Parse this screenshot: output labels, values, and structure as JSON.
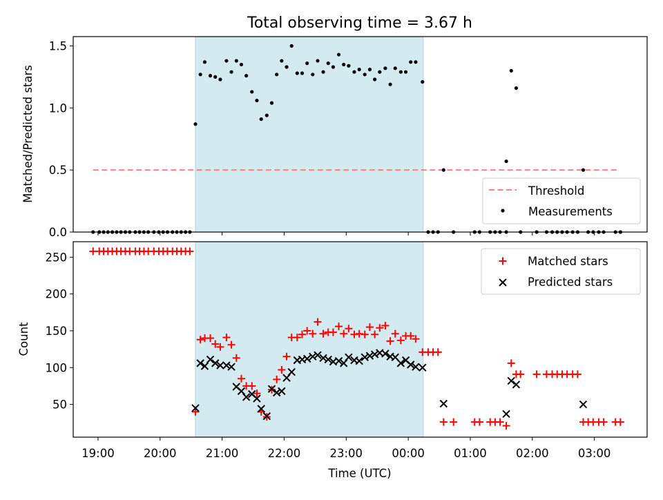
{
  "chart_data": [
    {
      "type": "scatter",
      "title": "Total observing time = 3.67 h",
      "xlabel": "",
      "ylabel": "Matched/Predicted stars",
      "xlim": [
        18.6,
        27.85
      ],
      "ylim": [
        0,
        1.575
      ],
      "yticks": [
        0.0,
        0.5,
        1.0,
        1.5
      ],
      "ytick_labels": [
        "0.0",
        "0.5",
        "1.0",
        "1.5"
      ],
      "shaded_interval": [
        20.57,
        24.24
      ],
      "threshold": {
        "value": 0.5,
        "x_range": [
          18.92,
          27.4
        ]
      },
      "legend_position": "lower right",
      "legend": [
        "Threshold",
        "Measurements"
      ],
      "colors": {
        "threshold": "#ff8080",
        "measurements": "#000000",
        "shade": "#d4eaf1"
      },
      "series": [
        {
          "name": "Measurements",
          "points": [
            [
              18.92,
              0.0
            ],
            [
              19.02,
              0.0
            ],
            [
              19.09,
              0.0
            ],
            [
              19.16,
              0.0
            ],
            [
              19.23,
              0.0
            ],
            [
              19.3,
              0.0
            ],
            [
              19.37,
              0.0
            ],
            [
              19.44,
              0.0
            ],
            [
              19.51,
              0.0
            ],
            [
              19.6,
              0.0
            ],
            [
              19.67,
              0.0
            ],
            [
              19.74,
              0.0
            ],
            [
              19.81,
              0.0
            ],
            [
              19.9,
              0.0
            ],
            [
              19.98,
              0.0
            ],
            [
              20.05,
              0.0
            ],
            [
              20.12,
              0.0
            ],
            [
              20.2,
              0.0
            ],
            [
              20.27,
              0.0
            ],
            [
              20.34,
              0.0
            ],
            [
              20.41,
              0.0
            ],
            [
              20.48,
              0.0
            ],
            [
              20.57,
              0.87
            ],
            [
              20.65,
              1.27
            ],
            [
              20.72,
              1.37
            ],
            [
              20.81,
              1.26
            ],
            [
              20.89,
              1.25
            ],
            [
              20.97,
              1.23
            ],
            [
              21.07,
              1.38
            ],
            [
              21.15,
              1.29
            ],
            [
              21.23,
              1.38
            ],
            [
              21.31,
              1.35
            ],
            [
              21.39,
              1.26
            ],
            [
              21.48,
              1.13
            ],
            [
              21.56,
              1.06
            ],
            [
              21.63,
              0.91
            ],
            [
              21.72,
              0.94
            ],
            [
              21.8,
              1.04
            ],
            [
              21.88,
              1.27
            ],
            [
              21.96,
              1.38
            ],
            [
              22.04,
              1.33
            ],
            [
              22.12,
              1.5
            ],
            [
              22.21,
              1.28
            ],
            [
              22.29,
              1.28
            ],
            [
              22.37,
              1.36
            ],
            [
              22.46,
              1.27
            ],
            [
              22.54,
              1.38
            ],
            [
              22.63,
              1.29
            ],
            [
              22.71,
              1.36
            ],
            [
              22.79,
              1.33
            ],
            [
              22.88,
              1.43
            ],
            [
              22.96,
              1.35
            ],
            [
              23.04,
              1.34
            ],
            [
              23.13,
              1.29
            ],
            [
              23.21,
              1.31
            ],
            [
              23.3,
              1.27
            ],
            [
              23.38,
              1.31
            ],
            [
              23.46,
              1.23
            ],
            [
              23.54,
              1.29
            ],
            [
              23.63,
              1.32
            ],
            [
              23.71,
              1.19
            ],
            [
              23.79,
              1.32
            ],
            [
              23.88,
              1.29
            ],
            [
              23.96,
              1.29
            ],
            [
              24.04,
              1.37
            ],
            [
              24.12,
              1.37
            ],
            [
              24.23,
              1.21
            ],
            [
              24.32,
              0.0
            ],
            [
              24.4,
              0.0
            ],
            [
              24.48,
              0.0
            ],
            [
              24.57,
              0.5
            ],
            [
              24.73,
              0.0
            ],
            [
              25.07,
              0.0
            ],
            [
              25.15,
              0.0
            ],
            [
              25.32,
              0.0
            ],
            [
              25.4,
              0.0
            ],
            [
              25.48,
              0.0
            ],
            [
              25.58,
              0.0
            ],
            [
              25.58,
              0.57
            ],
            [
              25.66,
              1.3
            ],
            [
              25.74,
              1.16
            ],
            [
              25.81,
              0.0
            ],
            [
              26.07,
              0.0
            ],
            [
              26.23,
              0.0
            ],
            [
              26.32,
              0.0
            ],
            [
              26.4,
              0.0
            ],
            [
              26.48,
              0.0
            ],
            [
              26.56,
              0.0
            ],
            [
              26.65,
              0.0
            ],
            [
              26.73,
              0.0
            ],
            [
              26.82,
              0.5
            ],
            [
              26.9,
              0.0
            ],
            [
              26.98,
              0.0
            ],
            [
              27.07,
              0.0
            ],
            [
              27.15,
              0.0
            ],
            [
              27.34,
              0.0
            ],
            [
              27.42,
              0.0
            ]
          ]
        }
      ]
    },
    {
      "type": "scatter",
      "title": "",
      "xlabel": "Time (UTC)",
      "ylabel": "Count",
      "xlim": [
        18.6,
        27.85
      ],
      "ylim": [
        5.5,
        271
      ],
      "xticks": [
        19,
        20,
        21,
        22,
        23,
        24,
        25,
        26,
        27
      ],
      "xtick_labels": [
        "19:00",
        "20:00",
        "21:00",
        "22:00",
        "23:00",
        "00:00",
        "01:00",
        "02:00",
        "03:00"
      ],
      "yticks": [
        50,
        100,
        150,
        200,
        250
      ],
      "ytick_labels": [
        "50",
        "100",
        "150",
        "200",
        "250"
      ],
      "shaded_interval": [
        20.57,
        24.24
      ],
      "legend_position": "upper right",
      "legend": [
        "Matched stars",
        "Predicted stars"
      ],
      "colors": {
        "matched": "#ff0000",
        "predicted": "#000000",
        "shade": "#d4eaf1"
      },
      "series": [
        {
          "name": "Matched stars",
          "points": [
            [
              18.92,
              258
            ],
            [
              19.02,
              258
            ],
            [
              19.09,
              258
            ],
            [
              19.16,
              258
            ],
            [
              19.23,
              258
            ],
            [
              19.3,
              258
            ],
            [
              19.37,
              258
            ],
            [
              19.44,
              258
            ],
            [
              19.51,
              258
            ],
            [
              19.6,
              258
            ],
            [
              19.67,
              258
            ],
            [
              19.74,
              258
            ],
            [
              19.81,
              258
            ],
            [
              19.9,
              258
            ],
            [
              19.98,
              258
            ],
            [
              20.05,
              258
            ],
            [
              20.12,
              258
            ],
            [
              20.2,
              258
            ],
            [
              20.27,
              258
            ],
            [
              20.34,
              258
            ],
            [
              20.41,
              258
            ],
            [
              20.48,
              258
            ],
            [
              20.57,
              40
            ],
            [
              20.65,
              138
            ],
            [
              20.72,
              140
            ],
            [
              20.81,
              140
            ],
            [
              20.89,
              132
            ],
            [
              20.97,
              128
            ],
            [
              21.07,
              141
            ],
            [
              21.15,
              131
            ],
            [
              21.23,
              113
            ],
            [
              21.31,
              85
            ],
            [
              21.39,
              75
            ],
            [
              21.48,
              75
            ],
            [
              21.56,
              65
            ],
            [
              21.63,
              40
            ],
            [
              21.72,
              33
            ],
            [
              21.8,
              70
            ],
            [
              21.88,
              84
            ],
            [
              21.96,
              97
            ],
            [
              22.04,
              115
            ],
            [
              22.12,
              141
            ],
            [
              22.21,
              141
            ],
            [
              22.29,
              145
            ],
            [
              22.37,
              150
            ],
            [
              22.46,
              146
            ],
            [
              22.54,
              162
            ],
            [
              22.63,
              146
            ],
            [
              22.71,
              148
            ],
            [
              22.79,
              148
            ],
            [
              22.88,
              156
            ],
            [
              22.96,
              146
            ],
            [
              23.04,
              153
            ],
            [
              23.13,
              145
            ],
            [
              23.21,
              146
            ],
            [
              23.3,
              145
            ],
            [
              23.38,
              155
            ],
            [
              23.46,
              145
            ],
            [
              23.54,
              154
            ],
            [
              23.63,
              157
            ],
            [
              23.71,
              136
            ],
            [
              23.79,
              146
            ],
            [
              23.88,
              137
            ],
            [
              23.96,
              143
            ],
            [
              24.04,
              143
            ],
            [
              24.12,
              139
            ],
            [
              24.23,
              121
            ],
            [
              24.32,
              121
            ],
            [
              24.4,
              121
            ],
            [
              24.48,
              121
            ],
            [
              24.57,
              26
            ],
            [
              24.73,
              26
            ],
            [
              25.07,
              26
            ],
            [
              25.15,
              26
            ],
            [
              25.32,
              26
            ],
            [
              25.4,
              26
            ],
            [
              25.48,
              26
            ],
            [
              25.58,
              21
            ],
            [
              25.66,
              106
            ],
            [
              25.74,
              91
            ],
            [
              25.81,
              91
            ],
            [
              26.07,
              91
            ],
            [
              26.23,
              91
            ],
            [
              26.32,
              91
            ],
            [
              26.4,
              91
            ],
            [
              26.48,
              91
            ],
            [
              26.56,
              91
            ],
            [
              26.65,
              91
            ],
            [
              26.73,
              91
            ],
            [
              26.82,
              26
            ],
            [
              26.9,
              26
            ],
            [
              26.98,
              26
            ],
            [
              27.07,
              26
            ],
            [
              27.15,
              26
            ],
            [
              27.34,
              26
            ],
            [
              27.42,
              26
            ]
          ]
        },
        {
          "name": "Predicted stars",
          "points": [
            [
              20.57,
              45
            ],
            [
              20.65,
              106
            ],
            [
              20.72,
              102
            ],
            [
              20.81,
              111
            ],
            [
              20.89,
              106
            ],
            [
              20.97,
              103
            ],
            [
              21.07,
              103
            ],
            [
              21.15,
              101
            ],
            [
              21.23,
              74
            ],
            [
              21.31,
              68
            ],
            [
              21.39,
              60
            ],
            [
              21.48,
              64
            ],
            [
              21.56,
              58
            ],
            [
              21.63,
              44
            ],
            [
              21.72,
              34
            ],
            [
              21.8,
              71
            ],
            [
              21.88,
              66
            ],
            [
              21.96,
              68
            ],
            [
              22.04,
              86
            ],
            [
              22.12,
              94
            ],
            [
              22.21,
              110
            ],
            [
              22.29,
              111
            ],
            [
              22.37,
              112
            ],
            [
              22.46,
              115
            ],
            [
              22.54,
              117
            ],
            [
              22.63,
              113
            ],
            [
              22.71,
              111
            ],
            [
              22.79,
              108
            ],
            [
              22.88,
              109
            ],
            [
              22.96,
              106
            ],
            [
              23.04,
              114
            ],
            [
              23.13,
              110
            ],
            [
              23.21,
              109
            ],
            [
              23.3,
              114
            ],
            [
              23.38,
              116
            ],
            [
              23.46,
              118
            ],
            [
              23.54,
              120
            ],
            [
              23.63,
              119
            ],
            [
              23.71,
              115
            ],
            [
              23.79,
              114
            ],
            [
              23.88,
              106
            ],
            [
              23.96,
              110
            ],
            [
              24.04,
              104
            ],
            [
              24.12,
              101
            ],
            [
              24.23,
              100
            ],
            [
              24.57,
              51
            ],
            [
              25.58,
              37
            ],
            [
              25.66,
              82
            ],
            [
              25.74,
              77
            ],
            [
              26.82,
              50
            ]
          ]
        }
      ]
    }
  ]
}
